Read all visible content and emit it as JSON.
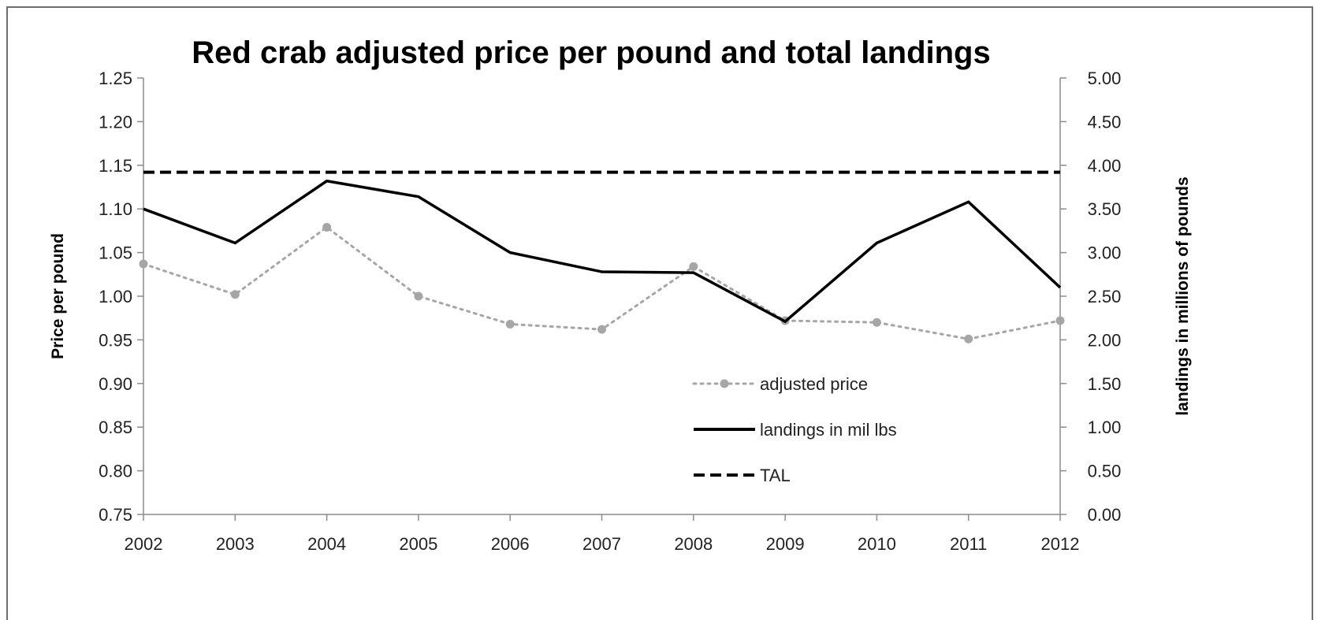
{
  "chart_data": {
    "type": "line",
    "title": "Red crab adjusted price per pound and total landings",
    "x": [
      "2002",
      "2003",
      "2004",
      "2005",
      "2006",
      "2007",
      "2008",
      "2009",
      "2010",
      "2011",
      "2012"
    ],
    "y_left": {
      "label": "Price per pound",
      "ylim": [
        0.75,
        1.25
      ],
      "ticks": [
        "0.75",
        "0.80",
        "0.85",
        "0.90",
        "0.95",
        "1.00",
        "1.05",
        "1.10",
        "1.15",
        "1.20",
        "1.25"
      ]
    },
    "y_right": {
      "label": "landings in millions of pounds",
      "ylim": [
        0.0,
        5.0
      ],
      "ticks": [
        "0.00",
        "0.50",
        "1.00",
        "1.50",
        "2.00",
        "2.50",
        "3.00",
        "3.50",
        "4.00",
        "4.50",
        "5.00"
      ]
    },
    "series": [
      {
        "name": "adjusted price",
        "axis": "left",
        "style": "dotted-markers",
        "color": "#a6a6a6",
        "values": [
          1.037,
          1.002,
          1.079,
          1.0,
          0.968,
          0.962,
          1.034,
          0.972,
          0.97,
          0.951,
          0.972
        ]
      },
      {
        "name": "landings in mil lbs",
        "axis": "right",
        "style": "solid",
        "color": "#000000",
        "values": [
          3.5,
          3.11,
          3.82,
          3.64,
          3.0,
          2.78,
          2.77,
          2.21,
          3.11,
          3.58,
          2.6
        ]
      },
      {
        "name": "TAL",
        "axis": "right",
        "style": "dashed",
        "color": "#000000",
        "values": [
          3.92,
          3.92,
          3.92,
          3.92,
          3.92,
          3.92,
          3.92,
          3.92,
          3.92,
          3.92,
          3.92
        ]
      }
    ],
    "grid": false,
    "legend_position": "bottom-right inside plot"
  }
}
